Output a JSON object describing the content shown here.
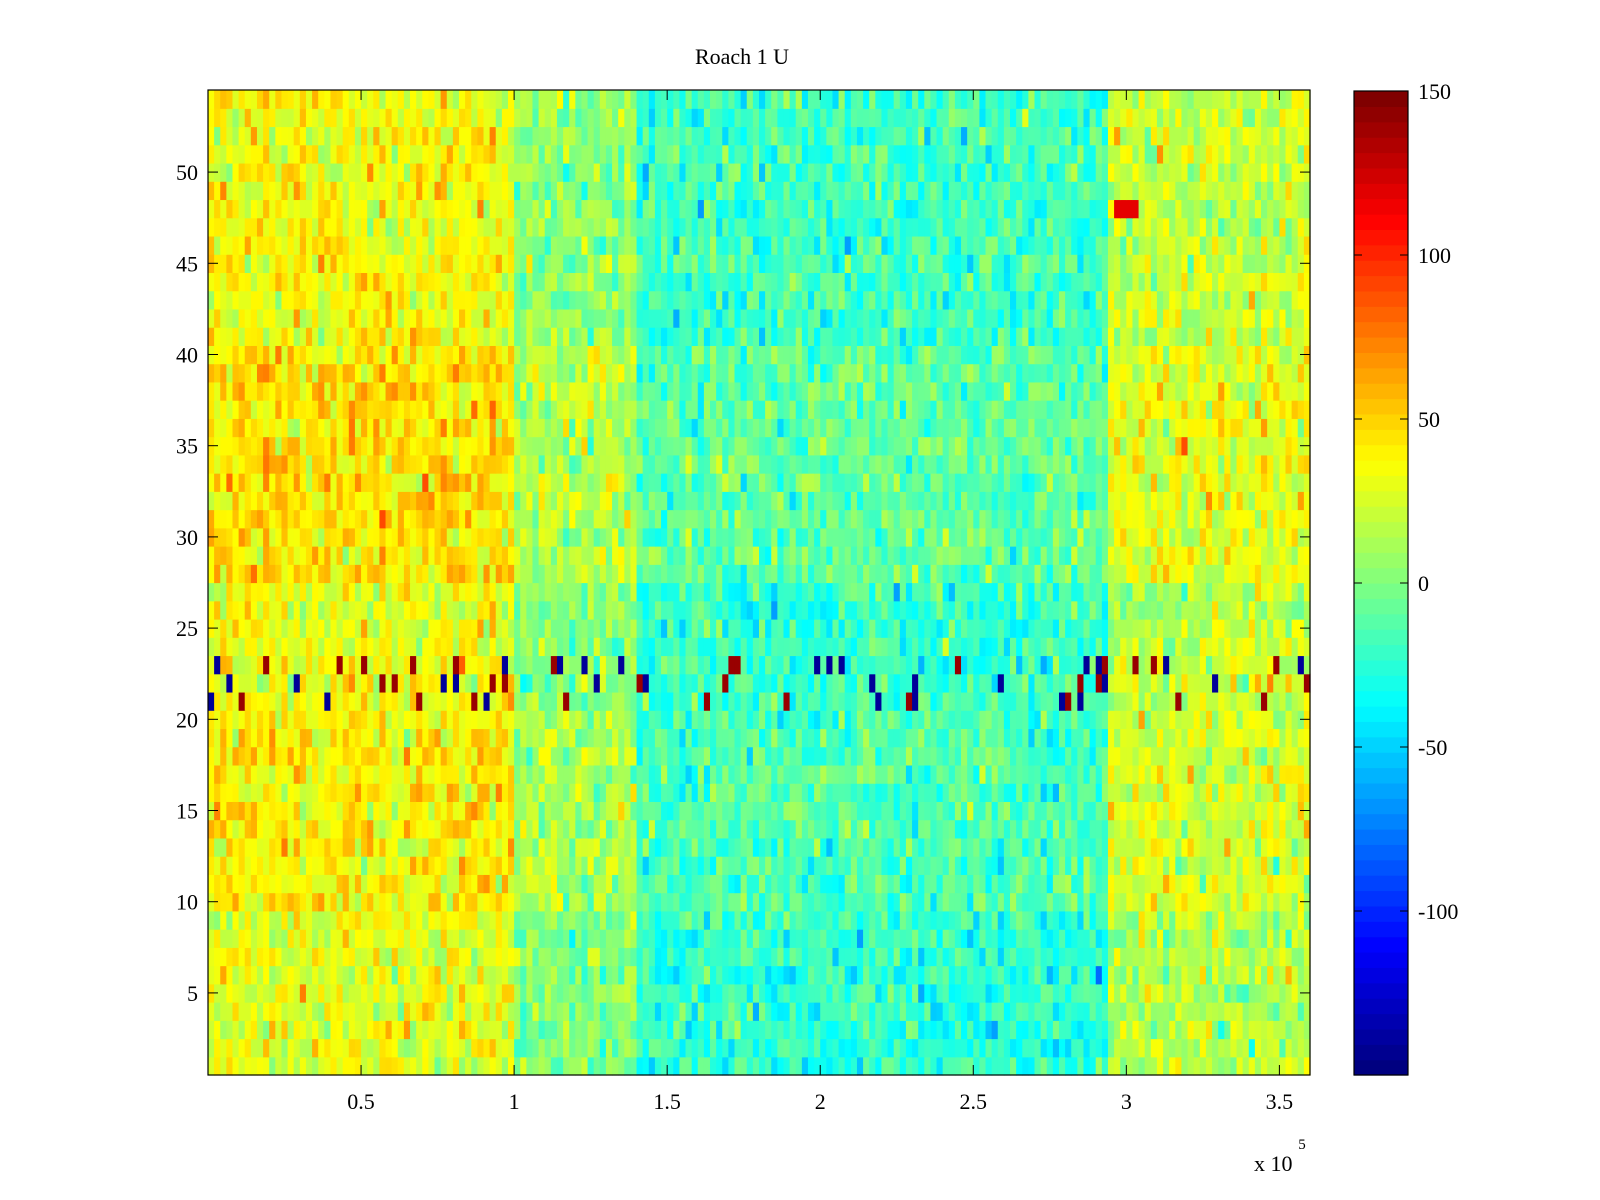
{
  "chart_data": {
    "type": "heatmap",
    "title": "Roach 1 U",
    "xlabel": "",
    "ylabel": "",
    "x_multiplier_label": "x 10",
    "x_multiplier_exponent": "5",
    "xlim": [
      0,
      360000
    ],
    "ylim": [
      0.5,
      54.5
    ],
    "x_ticks": [
      0.5,
      1,
      1.5,
      2,
      2.5,
      3,
      3.5
    ],
    "x_tick_labels": [
      "0.5",
      "1",
      "1.5",
      "2",
      "2.5",
      "3",
      "3.5"
    ],
    "y_ticks": [
      5,
      10,
      15,
      20,
      25,
      30,
      35,
      40,
      45,
      50
    ],
    "y_tick_labels": [
      "5",
      "10",
      "15",
      "20",
      "25",
      "30",
      "35",
      "40",
      "45",
      "50"
    ],
    "rows": 54,
    "colormap": "jet",
    "colorbar": {
      "clim": [
        -150,
        150
      ],
      "ticks": [
        150,
        100,
        50,
        0,
        -50,
        -100
      ],
      "tick_labels": [
        "150",
        "100",
        "50",
        "0",
        "-50",
        "-100"
      ]
    },
    "time_segments": [
      {
        "x_start": 0,
        "x_end": 100000,
        "mean_value": 35
      },
      {
        "x_start": 100000,
        "x_end": 140000,
        "mean_value": 5
      },
      {
        "x_start": 140000,
        "x_end": 295000,
        "mean_value": -20
      },
      {
        "x_start": 295000,
        "x_end": 360000,
        "mean_value": 20
      }
    ],
    "row_offsets": [
      {
        "rows": [
          1,
          9
        ],
        "offset": -5
      },
      {
        "rows": [
          10,
          20
        ],
        "offset": 5
      },
      {
        "rows": [
          21,
          23
        ],
        "offset": 0,
        "note_value_range": [
          -150,
          150
        ]
      },
      {
        "rows": [
          24,
          27
        ],
        "offset": -3
      },
      {
        "rows": [
          28,
          40
        ],
        "offset": 10
      },
      {
        "rows": [
          41,
          54
        ],
        "offset": 0
      }
    ],
    "events": [
      {
        "x": 300000,
        "row": 48,
        "value": 120
      }
    ]
  }
}
